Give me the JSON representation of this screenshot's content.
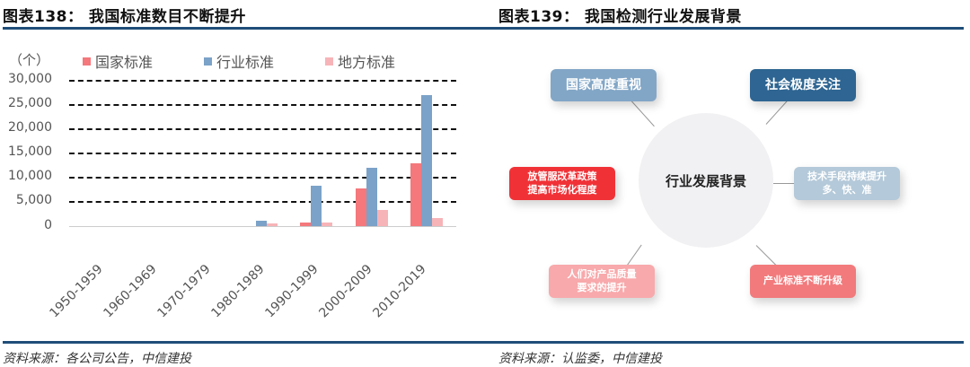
{
  "left": {
    "title": "图表138：  我国标准数目不断提升",
    "source": "资料来源：各公司公告，中信建投",
    "unit": "（个）",
    "legend": [
      {
        "label": "国家标准",
        "color": "#f4787c"
      },
      {
        "label": "行业标准",
        "color": "#7ba2c8"
      },
      {
        "label": "地方标准",
        "color": "#f7b4b8"
      }
    ],
    "yticks": [
      "30,000",
      "25,000",
      "20,000",
      "15,000",
      "10,000",
      "5,000",
      "0"
    ],
    "xticks": [
      "1950-1959",
      "1960-1969",
      "1970-1979",
      "1980-1989",
      "1990-1999",
      "2000-2009",
      "2010-2019"
    ]
  },
  "right": {
    "title": "图表139：  我国检测行业发展背景",
    "source": "资料来源：认监委，中信建投",
    "hub": "行业发展背景",
    "nodes": {
      "top_left": {
        "label": "国家高度重视",
        "color": "#82a6c6"
      },
      "top_right": {
        "label": "社会极度关注",
        "color": "#2e6592"
      },
      "mid_left_1": {
        "label": "放管服改革政策",
        "color": "#f03237"
      },
      "mid_left_2": {
        "label": "提高市场化程度",
        "color": "#f03237"
      },
      "mid_right_1": {
        "label": "技术手段持续提升",
        "color": "#b4c9d9"
      },
      "mid_right_2": {
        "label": "多、快、准",
        "color": "#b4c9d9"
      },
      "bottom_left_1": {
        "label": "人们对产品质量",
        "color": "#f8a9ab"
      },
      "bottom_left_2": {
        "label": "要求的提升",
        "color": "#f8a9ab"
      },
      "bottom_right": {
        "label": "产业标准不断升级",
        "color": "#f27a7c"
      }
    }
  },
  "chart_data": [
    {
      "type": "bar",
      "title": "我国标准数目不断提升",
      "xlabel": "",
      "ylabel": "（个）",
      "ylim": [
        0,
        30000
      ],
      "grid": true,
      "legend_position": "top",
      "categories": [
        "1950-1959",
        "1960-1969",
        "1970-1979",
        "1980-1989",
        "1990-1999",
        "2000-2009",
        "2010-2019"
      ],
      "series": [
        {
          "name": "国家标准",
          "values": [
            0,
            0,
            0,
            0,
            700,
            7700,
            12900
          ]
        },
        {
          "name": "行业标准",
          "values": [
            0,
            0,
            0,
            1100,
            8300,
            12000,
            26900
          ]
        },
        {
          "name": "地方标准",
          "values": [
            0,
            0,
            0,
            500,
            700,
            3300,
            1700
          ]
        }
      ]
    }
  ]
}
